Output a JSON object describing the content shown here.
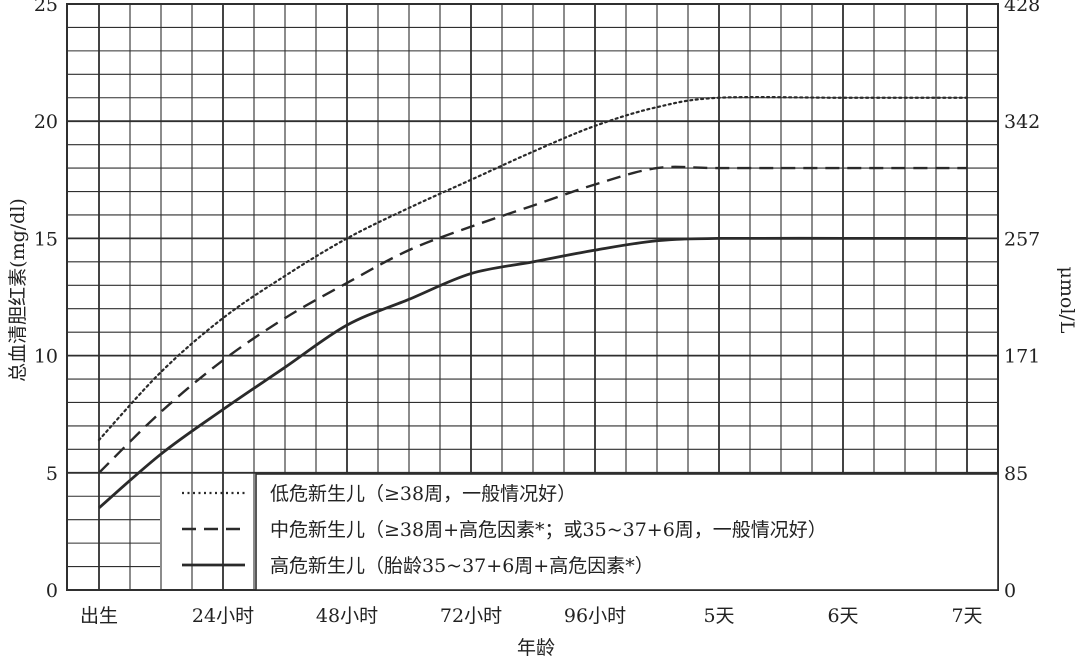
{
  "chart_data": {
    "type": "line",
    "xlabel": "年龄",
    "ylabel": "总血清胆红素(mg/dl)",
    "ylabel_right": "μmol/L",
    "x_categories": [
      "出生",
      "24小时",
      "48小时",
      "72小时",
      "96小时",
      "5天",
      "6天",
      "7天"
    ],
    "ylim": [
      0,
      25
    ],
    "yticks": [
      0,
      5,
      10,
      15,
      20,
      25
    ],
    "yticks_right": [
      "0",
      "85",
      "171",
      "257",
      "342",
      "428"
    ],
    "grid": true,
    "legend_position": "bottom-right",
    "series": [
      {
        "name": "低危新生儿（≥38周，一般情况好）",
        "style": "dotted",
        "x_hours": [
          0,
          12,
          24,
          36,
          48,
          60,
          72,
          84,
          96,
          108,
          120,
          144,
          168
        ],
        "values": [
          6.4,
          9.3,
          11.6,
          13.4,
          15.0,
          16.3,
          17.5,
          18.7,
          19.8,
          20.6,
          21.0,
          21.0,
          21.0
        ]
      },
      {
        "name": "中危新生儿（≥38周+高危因素*；或35~37+6周，一般情况好）",
        "style": "dashed",
        "x_hours": [
          0,
          12,
          24,
          36,
          48,
          60,
          72,
          84,
          96,
          108,
          120,
          144,
          168
        ],
        "values": [
          5.0,
          7.6,
          9.8,
          11.6,
          13.1,
          14.5,
          15.5,
          16.4,
          17.3,
          18.0,
          18.0,
          18.0,
          18.0
        ]
      },
      {
        "name": "高危新生儿（胎龄35~37+6周+高危因素*）",
        "style": "solid",
        "x_hours": [
          0,
          12,
          24,
          36,
          48,
          60,
          72,
          84,
          96,
          108,
          120,
          144,
          168
        ],
        "values": [
          3.5,
          5.8,
          7.7,
          9.5,
          11.3,
          12.4,
          13.5,
          14.0,
          14.5,
          14.9,
          15.0,
          15.0,
          15.0
        ]
      }
    ]
  },
  "colors": {
    "line": "#2a2a2a",
    "grid": "#2f2f2f",
    "background": "#ffffff"
  }
}
